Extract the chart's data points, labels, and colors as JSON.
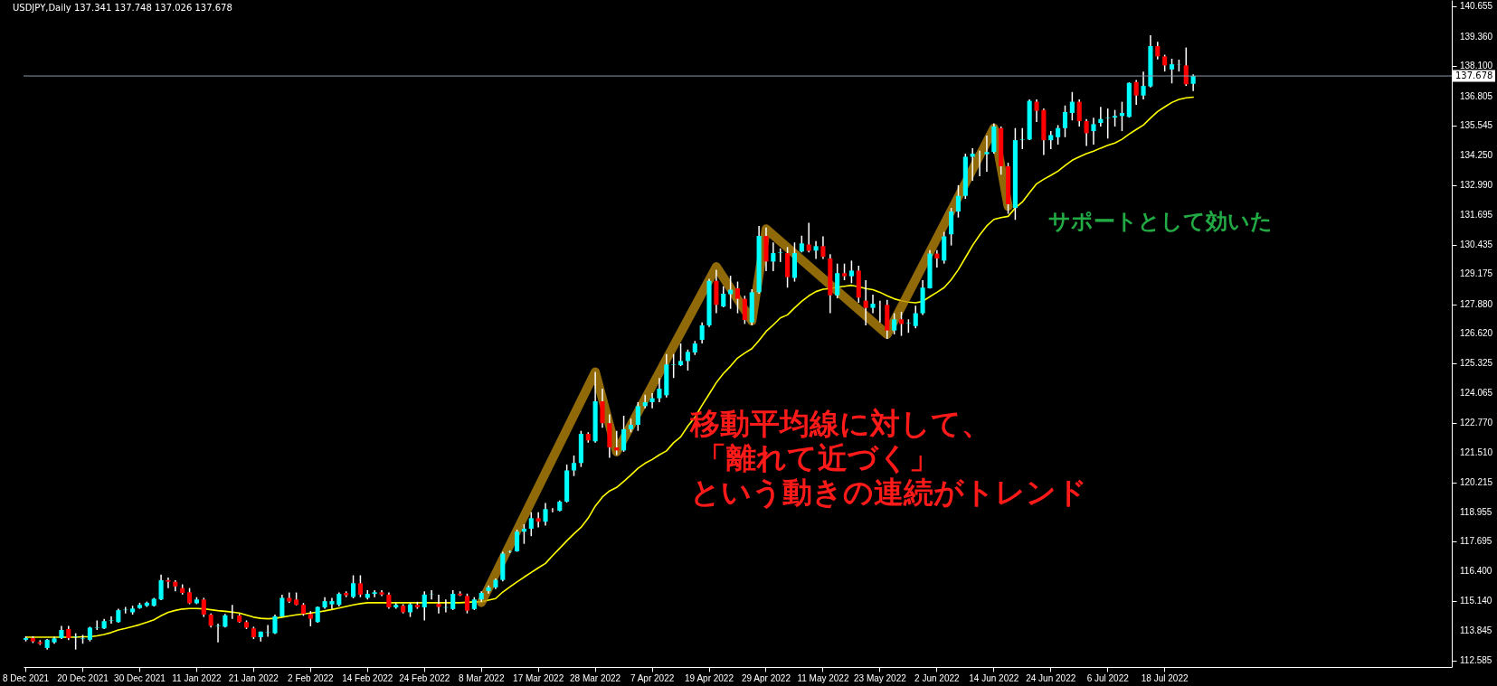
{
  "chart_data": {
    "type": "candlestick",
    "title": "USDJPY,Daily  137.341 137.748 137.026 137.678",
    "categories": [
      "8 Dec 2021",
      null,
      null,
      null,
      null,
      null,
      null,
      null,
      "20 Dec 2021",
      null,
      null,
      null,
      null,
      null,
      null,
      null,
      "30 Dec 2021",
      null,
      null,
      null,
      null,
      null,
      null,
      null,
      "11 Jan 2022",
      null,
      null,
      null,
      null,
      null,
      null,
      null,
      "21 Jan 2022",
      null,
      null,
      null,
      null,
      null,
      null,
      null,
      "2 Feb 2022",
      null,
      null,
      null,
      null,
      null,
      null,
      null,
      "14 Feb 2022",
      null,
      null,
      null,
      null,
      null,
      null,
      null,
      "24 Feb 2022",
      null,
      null,
      null,
      null,
      null,
      null,
      null,
      "8 Mar 2022",
      null,
      null,
      null,
      null,
      null,
      null,
      null,
      "17 Mar 2022",
      null,
      null,
      null,
      null,
      null,
      null,
      null,
      "28 Mar 2022",
      null,
      null,
      null,
      null,
      null,
      null,
      null,
      "7 Apr 2022",
      null,
      null,
      null,
      null,
      null,
      null,
      null,
      "19 Apr 2022",
      null,
      null,
      null,
      null,
      null,
      null,
      null,
      "29 Apr 2022",
      null,
      null,
      null,
      null,
      null,
      null,
      null,
      "11 May 2022",
      null,
      null,
      null,
      null,
      null,
      null,
      null,
      "23 May 2022",
      null,
      null,
      null,
      null,
      null,
      null,
      null,
      "2 Jun 2022",
      null,
      null,
      null,
      null,
      null,
      null,
      null,
      "14 Jun 2022",
      null,
      null,
      null,
      null,
      null,
      null,
      null,
      "24 Jun 2022",
      null,
      null,
      null,
      null,
      null,
      null,
      null,
      "6 Jul 2022",
      null,
      null,
      null,
      null,
      null,
      null,
      null,
      "18 Jul 2022",
      null,
      null,
      null,
      null,
      null,
      null,
      null,
      null,
      null,
      null,
      null,
      null,
      null,
      null,
      null,
      null,
      null,
      null,
      null,
      null,
      null,
      null,
      null,
      null,
      null,
      null,
      null,
      null,
      null,
      null,
      null,
      null,
      null,
      null,
      null,
      null,
      null,
      null,
      null,
      null
    ],
    "ohlc": [
      [
        113.47,
        113.62,
        113.4,
        113.54
      ],
      [
        113.54,
        113.62,
        113.33,
        113.4
      ],
      [
        113.37,
        113.45,
        113.25,
        113.3
      ],
      [
        113.12,
        113.5,
        113.05,
        113.47
      ],
      [
        113.36,
        113.6,
        113.3,
        113.53
      ],
      [
        113.54,
        114.07,
        113.5,
        113.89
      ],
      [
        113.93,
        114.07,
        113.45,
        113.54
      ],
      [
        113.58,
        113.75,
        113.05,
        113.6
      ],
      [
        113.5,
        113.68,
        113.3,
        113.52
      ],
      [
        113.47,
        114.03,
        113.4,
        113.99
      ],
      [
        113.97,
        114.3,
        113.89,
        113.99
      ],
      [
        113.96,
        114.37,
        113.93,
        114.27
      ],
      [
        114.28,
        114.47,
        114.16,
        114.3
      ],
      [
        114.23,
        114.8,
        114.2,
        114.74
      ],
      [
        114.74,
        114.88,
        114.6,
        114.76
      ],
      [
        114.65,
        114.93,
        114.55,
        114.81
      ],
      [
        114.83,
        115.06,
        114.8,
        114.97
      ],
      [
        114.93,
        115.11,
        114.88,
        115.06
      ],
      [
        114.93,
        115.27,
        114.9,
        115.23
      ],
      [
        115.2,
        116.27,
        115.17,
        116.03
      ],
      [
        116.03,
        116.14,
        115.69,
        115.96
      ],
      [
        115.96,
        116.03,
        115.55,
        115.76
      ],
      [
        115.69,
        115.85,
        115.41,
        115.48
      ],
      [
        115.51,
        115.69,
        115.0,
        115.04
      ],
      [
        115.04,
        115.3,
        115.0,
        115.2
      ],
      [
        115.2,
        115.27,
        114.45,
        114.55
      ],
      [
        114.55,
        114.6,
        114.0,
        114.07
      ],
      [
        114.06,
        114.16,
        113.36,
        114.08
      ],
      [
        114.03,
        114.58,
        114.0,
        114.52
      ],
      [
        114.55,
        114.97,
        114.37,
        114.54
      ],
      [
        114.51,
        114.58,
        114.2,
        114.23
      ],
      [
        114.23,
        114.3,
        113.93,
        113.99
      ],
      [
        113.96,
        114.03,
        113.5,
        113.58
      ],
      [
        113.58,
        113.82,
        113.4,
        113.82
      ],
      [
        113.77,
        114.1,
        113.6,
        113.79
      ],
      [
        113.75,
        114.55,
        113.72,
        114.48
      ],
      [
        114.47,
        115.4,
        114.45,
        115.27
      ],
      [
        115.27,
        115.5,
        115.05,
        115.11
      ],
      [
        115.2,
        115.5,
        114.95,
        114.97
      ],
      [
        114.97,
        115.05,
        114.5,
        114.58
      ],
      [
        114.58,
        114.7,
        114.05,
        114.37
      ],
      [
        114.23,
        114.9,
        114.2,
        114.88
      ],
      [
        114.86,
        115.3,
        114.8,
        115.13
      ],
      [
        114.99,
        115.27,
        114.79,
        115.13
      ],
      [
        114.97,
        115.5,
        114.9,
        115.44
      ],
      [
        115.48,
        115.55,
        115.3,
        115.38
      ],
      [
        115.31,
        116.24,
        115.25,
        115.9
      ],
      [
        115.9,
        116.24,
        115.3,
        115.41
      ],
      [
        115.27,
        115.6,
        115.2,
        115.44
      ],
      [
        115.44,
        115.6,
        115.3,
        115.51
      ],
      [
        115.51,
        115.6,
        115.35,
        115.41
      ],
      [
        115.41,
        115.5,
        114.8,
        114.86
      ],
      [
        114.86,
        115.05,
        114.8,
        114.97
      ],
      [
        114.93,
        115.0,
        114.6,
        114.65
      ],
      [
        114.65,
        115.05,
        114.45,
        114.99
      ],
      [
        114.97,
        115.1,
        114.8,
        114.86
      ],
      [
        114.86,
        115.55,
        114.3,
        115.41
      ],
      [
        115.43,
        115.6,
        115.2,
        115.44
      ],
      [
        115.01,
        115.4,
        114.6,
        114.88
      ],
      [
        114.85,
        115.2,
        114.65,
        114.87
      ],
      [
        114.79,
        115.6,
        114.75,
        115.44
      ],
      [
        115.45,
        115.55,
        115.35,
        115.38
      ],
      [
        115.35,
        115.45,
        114.6,
        114.72
      ],
      [
        114.79,
        115.3,
        114.75,
        115.2
      ],
      [
        115.2,
        115.55,
        115.1,
        115.48
      ],
      [
        115.56,
        115.8,
        115.45,
        115.72
      ],
      [
        115.72,
        116.1,
        115.65,
        116.04
      ],
      [
        116.04,
        117.25,
        115.98,
        117.17
      ],
      [
        117.25,
        117.3,
        117.2,
        117.27
      ],
      [
        117.27,
        118.2,
        117.25,
        118.11
      ],
      [
        118.11,
        118.43,
        117.59,
        118.24
      ],
      [
        118.24,
        118.95,
        117.92,
        118.69
      ],
      [
        118.69,
        118.95,
        118.3,
        118.54
      ],
      [
        118.54,
        119.34,
        118.37,
        119.08
      ],
      [
        119.05,
        119.12,
        118.95,
        119.04
      ],
      [
        119.01,
        119.45,
        118.98,
        119.4
      ],
      [
        119.4,
        120.99,
        119.36,
        120.74
      ],
      [
        120.74,
        121.38,
        120.5,
        121.06
      ],
      [
        121.06,
        122.44,
        120.89,
        122.31
      ],
      [
        122.31,
        122.38,
        121.93,
        122.03
      ],
      [
        121.99,
        124.97,
        121.93,
        123.71
      ],
      [
        123.71,
        124.25,
        122.57,
        122.77
      ],
      [
        122.77,
        123.15,
        121.28,
        121.73
      ],
      [
        121.73,
        122.44,
        121.4,
        121.6
      ],
      [
        121.6,
        123.09,
        121.54,
        122.51
      ],
      [
        122.51,
        122.96,
        122.38,
        122.7
      ],
      [
        122.7,
        123.67,
        122.44,
        123.5
      ],
      [
        123.5,
        123.99,
        123.41,
        123.67
      ],
      [
        123.67,
        124.06,
        123.41,
        123.84
      ],
      [
        123.84,
        124.71,
        123.67,
        124.25
      ],
      [
        123.97,
        125.74,
        123.87,
        125.29
      ],
      [
        125.27,
        125.74,
        124.71,
        125.29
      ],
      [
        125.26,
        126.19,
        125.22,
        125.44
      ],
      [
        125.44,
        125.93,
        125.03,
        125.83
      ],
      [
        125.81,
        126.3,
        125.7,
        126.19
      ],
      [
        126.35,
        127.1,
        126.19,
        126.97
      ],
      [
        126.97,
        128.97,
        126.9,
        128.88
      ],
      [
        128.88,
        129.36,
        127.49,
        127.85
      ],
      [
        127.78,
        128.65,
        127.75,
        128.33
      ],
      [
        128.31,
        129.1,
        127.68,
        128.5
      ],
      [
        128.56,
        128.85,
        127.49,
        128.11
      ],
      [
        128.11,
        128.24,
        127.03,
        127.2
      ],
      [
        127.1,
        128.52,
        126.97,
        128.39
      ],
      [
        128.39,
        131.24,
        128.33,
        130.81
      ],
      [
        130.81,
        131.17,
        129.3,
        129.71
      ],
      [
        129.71,
        130.53,
        129.3,
        130.07
      ],
      [
        130.08,
        130.27,
        129.69,
        130.1
      ],
      [
        130.07,
        130.33,
        128.59,
        129.04
      ],
      [
        129.01,
        130.53,
        128.85,
        130.07
      ],
      [
        130.14,
        130.82,
        130.1,
        130.49
      ],
      [
        130.44,
        131.37,
        130.1,
        130.17
      ],
      [
        130.18,
        130.59,
        129.82,
        130.37
      ],
      [
        130.37,
        130.79,
        129.82,
        129.91
      ],
      [
        129.84,
        130.03,
        127.49,
        128.26
      ],
      [
        128.26,
        129.62,
        128.13,
        129.21
      ],
      [
        129.21,
        129.62,
        128.91,
        129.08
      ],
      [
        129.08,
        129.75,
        128.78,
        129.32
      ],
      [
        129.32,
        129.53,
        127.94,
        128.16
      ],
      [
        128.03,
        128.91,
        126.97,
        127.72
      ],
      [
        127.72,
        128.29,
        127.49,
        127.9
      ],
      [
        127.88,
        128.03,
        127.1,
        127.87
      ],
      [
        127.85,
        128.07,
        126.39,
        126.75
      ],
      [
        126.75,
        127.49,
        126.58,
        127.23
      ],
      [
        127.23,
        127.55,
        126.52,
        127.03
      ],
      [
        127.05,
        127.23,
        126.65,
        127.07
      ],
      [
        126.94,
        127.81,
        126.84,
        127.49
      ],
      [
        127.49,
        128.91,
        127.42,
        128.59
      ],
      [
        128.56,
        130.2,
        128.55,
        130.05
      ],
      [
        130.05,
        130.2,
        129.45,
        129.84
      ],
      [
        129.75,
        130.98,
        129.62,
        130.79
      ],
      [
        130.88,
        132.01,
        130.4,
        131.86
      ],
      [
        131.86,
        132.99,
        131.6,
        132.53
      ],
      [
        132.53,
        134.34,
        132.4,
        134.21
      ],
      [
        134.21,
        134.58,
        133.18,
        134.34
      ],
      [
        134.33,
        134.47,
        133.37,
        134.34
      ],
      [
        134.32,
        135.12,
        133.57,
        134.41
      ],
      [
        134.41,
        135.64,
        134.34,
        135.51
      ],
      [
        135.44,
        135.51,
        133.44,
        133.8
      ],
      [
        133.8,
        133.95,
        131.76,
        132.17
      ],
      [
        132.01,
        135.44,
        131.5,
        134.92
      ],
      [
        134.93,
        135.44,
        134.54,
        134.95
      ],
      [
        134.95,
        136.67,
        134.92,
        136.61
      ],
      [
        136.57,
        136.67,
        135.7,
        136.18
      ],
      [
        136.22,
        136.28,
        134.28,
        134.92
      ],
      [
        134.92,
        135.31,
        134.54,
        135.14
      ],
      [
        135.05,
        135.57,
        134.73,
        135.44
      ],
      [
        135.44,
        136.41,
        135.05,
        136.13
      ],
      [
        136.09,
        136.99,
        135.77,
        136.57
      ],
      [
        136.57,
        136.67,
        135.51,
        135.74
      ],
      [
        135.74,
        135.83,
        134.67,
        135.22
      ],
      [
        135.31,
        135.89,
        134.73,
        135.61
      ],
      [
        135.66,
        136.35,
        135.51,
        135.83
      ],
      [
        135.86,
        136.28,
        134.99,
        135.88
      ],
      [
        135.89,
        136.22,
        135.51,
        135.96
      ],
      [
        135.96,
        136.57,
        135.31,
        136.09
      ],
      [
        135.92,
        137.4,
        135.89,
        137.38
      ],
      [
        137.42,
        137.51,
        136.44,
        136.84
      ],
      [
        136.84,
        137.86,
        136.67,
        137.25
      ],
      [
        137.23,
        139.43,
        137.19,
        138.96
      ],
      [
        138.96,
        139.15,
        138.39,
        138.52
      ],
      [
        138.52,
        138.59,
        137.87,
        138.13
      ],
      [
        137.96,
        138.42,
        137.36,
        138.18
      ],
      [
        138.15,
        138.38,
        137.87,
        138.16
      ],
      [
        138.13,
        138.9,
        137.25,
        137.32
      ],
      [
        137.341,
        137.748,
        137.026,
        137.678
      ],
      null,
      null,
      null,
      null,
      null,
      null,
      null,
      null,
      null,
      null,
      null,
      null,
      null,
      null,
      null,
      null,
      null,
      null,
      null,
      null,
      null,
      null,
      null,
      null,
      null,
      null,
      null,
      null,
      null,
      null,
      null,
      null,
      null,
      null,
      null,
      null
    ],
    "colors": [
      "#00ffff",
      "#ff0000",
      "#ff0000",
      "#00ffff",
      "#00ffff",
      "#00ffff",
      "#ff0000",
      "#00ffff",
      "#00ffff",
      "#00ffff",
      "#00ffff",
      "#00ffff",
      "#00ffff",
      "#00ffff",
      "#00ffff",
      "#00ffff",
      "#00ffff",
      "#00ffff",
      "#00ffff",
      "#00ffff",
      "#ff0000",
      "#ff0000",
      "#ff0000",
      "#ff0000",
      "#00ffff",
      "#ff0000",
      "#ff0000",
      "#00ffff",
      "#00ffff",
      "#ff0000",
      "#ff0000",
      "#ff0000",
      "#ff0000",
      "#00ffff",
      "#00ffff",
      "#00ffff",
      "#00ffff",
      "#ff0000",
      "#ff0000",
      "#ff0000",
      "#ff0000",
      "#00ffff",
      "#00ffff",
      "#00ffff",
      "#00ffff",
      "#ff0000",
      "#00ffff",
      "#ff0000",
      "#00ffff",
      "#00ffff",
      "#ff0000",
      "#ff0000",
      "#00ffff",
      "#ff0000",
      "#00ffff",
      "#ff0000",
      "#00ffff",
      "#00ffff",
      "#ff0000",
      "#00ffff",
      "#00ffff",
      "#ff0000",
      "#ff0000",
      "#00ffff",
      "#00ffff",
      "#00ffff",
      "#00ffff",
      "#00ffff",
      "#00ffff",
      "#00ffff",
      "#00ffff",
      "#00ffff",
      "#ff0000",
      "#00ffff",
      "#ff0000",
      "#00ffff",
      "#00ffff",
      "#00ffff",
      "#00ffff",
      "#ff0000",
      "#00ffff",
      "#ff0000",
      "#ff0000",
      "#ff0000",
      "#00ffff",
      "#00ffff",
      "#00ffff",
      "#00ffff",
      "#00ffff",
      "#00ffff",
      "#00ffff",
      "#00ffff",
      "#00ffff",
      "#00ffff",
      "#00ffff",
      "#00ffff",
      "#00ffff",
      "#ff0000",
      "#00ffff",
      "#00ffff",
      "#ff0000",
      "#ff0000",
      "#00ffff",
      "#00ffff",
      "#ff0000",
      "#00ffff",
      "#00ffff",
      "#ff0000",
      "#00ffff",
      "#00ffff",
      "#ff0000",
      "#00ffff",
      "#ff0000",
      "#ff0000",
      "#00ffff",
      "#ff0000",
      "#00ffff",
      "#ff0000",
      "#ff0000",
      "#00ffff",
      "#ff0000",
      "#ff0000",
      "#00ffff",
      "#ff0000",
      "#00ffff",
      "#00ffff",
      "#00ffff",
      "#00ffff",
      "#ff0000",
      "#00ffff",
      "#00ffff",
      "#00ffff",
      "#00ffff",
      "#00ffff",
      "#00ffff",
      "#00ffff",
      "#00ffff",
      "#ff0000",
      "#ff0000",
      "#00ffff",
      "#00ffff",
      "#00ffff",
      "#ff0000",
      "#ff0000",
      "#00ffff",
      "#00ffff",
      "#00ffff",
      "#00ffff",
      "#ff0000",
      "#ff0000",
      "#00ffff",
      "#00ffff",
      "#00ffff",
      "#00ffff",
      "#00ffff",
      "#00ffff",
      "#ff0000",
      "#00ffff",
      "#00ffff",
      "#ff0000",
      "#ff0000",
      "#00ffff",
      "#00ffff",
      "#ff0000",
      "#00ffff",
      null,
      null,
      null,
      null,
      null,
      null,
      null,
      null,
      null,
      null,
      null,
      null,
      null,
      null,
      null,
      null,
      null,
      null,
      null,
      null,
      null,
      null,
      null,
      null,
      null,
      null,
      null,
      null,
      null,
      null,
      null,
      null,
      null,
      null,
      null,
      null
    ],
    "series": [
      {
        "type": "line",
        "color": "#ffff00",
        "values": [
          113.58,
          113.58,
          113.58,
          113.58,
          113.58,
          113.58,
          113.58,
          113.58,
          113.6,
          113.6,
          113.64,
          113.7,
          113.78,
          113.89,
          113.96,
          114.04,
          114.12,
          114.22,
          114.33,
          114.5,
          114.65,
          114.73,
          114.79,
          114.81,
          114.81,
          114.8,
          114.76,
          114.72,
          114.69,
          114.66,
          114.62,
          114.53,
          114.44,
          114.39,
          114.37,
          114.39,
          114.44,
          114.49,
          114.54,
          114.58,
          114.62,
          114.66,
          114.71,
          114.77,
          114.83,
          114.9,
          114.97,
          115.02,
          115.06,
          115.06,
          115.06,
          115.06,
          115.06,
          115.06,
          115.06,
          115.06,
          115.06,
          115.06,
          115.06,
          115.06,
          115.06,
          115.06,
          115.08,
          115.1,
          115.1,
          115.17,
          115.24,
          115.52,
          115.74,
          115.95,
          116.16,
          116.36,
          116.56,
          116.75,
          117.08,
          117.4,
          117.72,
          118.02,
          118.3,
          118.69,
          119.21,
          119.6,
          119.86,
          120.01,
          120.27,
          120.54,
          120.83,
          121.05,
          121.21,
          121.41,
          121.58,
          121.93,
          122.18,
          122.64,
          123.02,
          123.54,
          124.02,
          124.51,
          124.9,
          125.22,
          125.57,
          125.78,
          125.97,
          126.32,
          126.71,
          126.99,
          127.29,
          127.42,
          127.72,
          128.0,
          128.24,
          128.42,
          128.52,
          128.55,
          128.61,
          128.65,
          128.69,
          128.63,
          128.55,
          128.5,
          128.39,
          128.24,
          128.11,
          128.03,
          127.97,
          127.94,
          128.0,
          128.2,
          128.39,
          128.59,
          128.93,
          129.36,
          129.88,
          130.4,
          130.85,
          131.24,
          131.52,
          131.6,
          131.65,
          132.01,
          132.27,
          132.66,
          133.05,
          133.24,
          133.41,
          133.59,
          133.83,
          134.06,
          134.21,
          134.34,
          134.45,
          134.58,
          134.7,
          134.8,
          134.96,
          135.18,
          135.38,
          135.57,
          135.87,
          136.15,
          136.35,
          136.54,
          136.67,
          136.74,
          136.77,
          null,
          null,
          null,
          null,
          null,
          null,
          null,
          null,
          null,
          null,
          null,
          null,
          null,
          null,
          null,
          null,
          null,
          null,
          null,
          null,
          null,
          null,
          null,
          null,
          null,
          null,
          null,
          null,
          null,
          null,
          null,
          null,
          null,
          null,
          null,
          null
        ]
      },
      {
        "type": "line",
        "color": "#b8860b",
        "values": [
          null,
          null,
          null,
          null,
          null,
          null,
          null,
          null,
          null,
          null,
          null,
          null,
          null,
          null,
          null,
          null,
          null,
          null,
          null,
          null,
          null,
          null,
          null,
          null,
          null,
          null,
          null,
          null,
          null,
          null,
          null,
          null,
          null,
          null,
          null,
          null,
          null,
          null,
          null,
          null,
          null,
          null,
          null,
          null,
          null,
          null,
          null,
          null,
          null,
          null,
          null,
          null,
          null,
          null,
          null,
          null,
          null,
          null,
          null,
          null,
          null,
          null,
          null,
          null,
          115.07,
          null,
          null,
          null,
          null,
          null,
          null,
          null,
          null,
          null,
          null,
          null,
          null,
          null,
          null,
          null,
          124.97,
          null,
          null,
          121.54,
          null,
          null,
          null,
          null,
          null,
          null,
          null,
          null,
          null,
          null,
          null,
          null,
          null,
          129.49,
          null,
          null,
          null,
          null,
          127.16,
          null,
          131.11,
          null,
          null,
          null,
          null,
          null,
          null,
          null,
          null,
          null,
          null,
          null,
          null,
          null,
          null,
          null,
          null,
          126.58,
          null,
          null,
          null,
          null,
          null,
          null,
          null,
          null,
          null,
          null,
          null,
          null,
          null,
          null,
          135.44,
          null,
          132.08,
          null,
          null,
          null,
          null,
          null,
          null,
          null,
          null,
          null,
          null,
          null,
          null,
          null,
          null,
          null,
          null,
          null,
          null,
          null,
          null,
          null,
          null,
          null,
          null,
          null,
          null,
          null,
          null,
          null,
          null,
          null,
          null,
          null,
          null,
          null,
          null,
          null,
          null,
          null,
          null,
          null,
          null,
          null,
          null,
          null,
          null,
          null,
          null,
          null,
          null,
          null,
          null,
          null,
          null,
          null,
          null,
          null,
          null,
          null,
          null,
          null,
          null
        ]
      }
    ],
    "ylim": [
      112.3,
      140.94
    ],
    "yticks": [
      140.655,
      {
        "value": 139.36,
        "label": "139.360"
      },
      {
        "value": 138.1,
        "label": "138.100"
      },
      136.805,
      135.545,
      {
        "value": 134.25,
        "label": "134.250"
      },
      {
        "value": 132.99,
        "label": "132.990"
      },
      131.695,
      130.435,
      129.175,
      {
        "value": 127.88,
        "label": "127.880"
      },
      {
        "value": 126.62,
        "label": "126.620"
      },
      125.325,
      124.065,
      {
        "value": 122.77,
        "label": "122.770"
      },
      {
        "value": 121.51,
        "label": "121.510"
      },
      120.215,
      118.955,
      117.695,
      {
        "value": 116.4,
        "label": "116.400"
      },
      {
        "value": 115.14,
        "label": "115.140"
      },
      113.845,
      112.585
    ],
    "ref_lines": [
      {
        "axis": "y",
        "value": 137.678,
        "label": "137.678",
        "color": "#8797a8"
      }
    ],
    "annotations": [
      "移動平均線に対して、",
      "「離れて近づく」",
      "という動きの連続がトレンド",
      "サポートとして効いた"
    ]
  }
}
